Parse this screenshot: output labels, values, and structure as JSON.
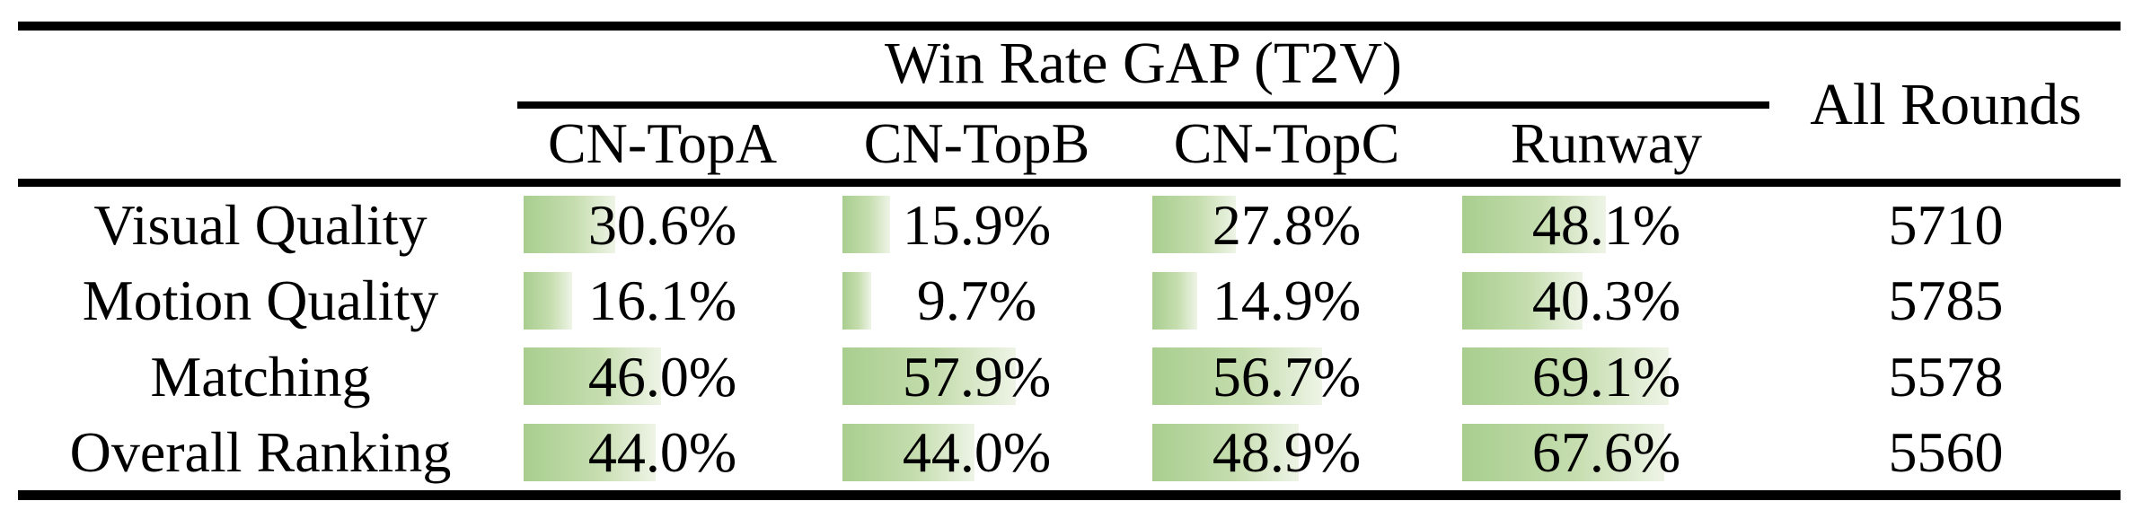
{
  "table": {
    "header": {
      "group_title": "Win Rate GAP (T2V)",
      "all_rounds_label": "All Rounds",
      "columns": [
        "CN-TopA",
        "CN-TopB",
        "CN-TopC",
        "Runway"
      ]
    },
    "rows": [
      {
        "label": "Visual Quality",
        "values": [
          "30.6%",
          "15.9%",
          "27.8%",
          "48.1%"
        ],
        "pcts": [
          30.6,
          15.9,
          27.8,
          48.1
        ],
        "all_rounds": "5710"
      },
      {
        "label": "Motion Quality",
        "values": [
          "16.1%",
          "9.7%",
          "14.9%",
          "40.3%"
        ],
        "pcts": [
          16.1,
          9.7,
          14.9,
          40.3
        ],
        "all_rounds": "5785"
      },
      {
        "label": "Matching",
        "values": [
          "46.0%",
          "57.9%",
          "56.7%",
          "69.1%"
        ],
        "pcts": [
          46.0,
          57.9,
          56.7,
          69.1
        ],
        "all_rounds": "5578"
      },
      {
        "label": "Overall Ranking",
        "values": [
          "44.0%",
          "44.0%",
          "48.9%",
          "67.6%"
        ],
        "pcts": [
          44.0,
          44.0,
          48.9,
          67.6
        ],
        "all_rounds": "5560"
      }
    ]
  },
  "colors": {
    "bar_gradient_start": "#a8ce8f",
    "bar_gradient_end": "#eef4e6",
    "rule_color": "#000000",
    "text_color": "#000000",
    "background": "#ffffff"
  },
  "chart_data": {
    "type": "table",
    "title": "Win Rate GAP (T2V)",
    "columns": [
      "CN-TopA",
      "CN-TopB",
      "CN-TopC",
      "Runway",
      "All Rounds"
    ],
    "row_labels": [
      "Visual Quality",
      "Motion Quality",
      "Matching",
      "Overall Ranking"
    ],
    "win_rate_gap_percent": {
      "Visual Quality": [
        30.6,
        15.9,
        27.8,
        48.1
      ],
      "Motion Quality": [
        16.1,
        9.7,
        14.9,
        40.3
      ],
      "Matching": [
        46.0,
        57.9,
        56.7,
        69.1
      ],
      "Overall Ranking": [
        44.0,
        44.0,
        48.9,
        67.6
      ]
    },
    "all_rounds": [
      5710,
      5785,
      5578,
      5560
    ],
    "layout_hints": "in-cell horizontal green gradient data bars, length proportional to percent; booktabs-style horizontal rules only"
  }
}
